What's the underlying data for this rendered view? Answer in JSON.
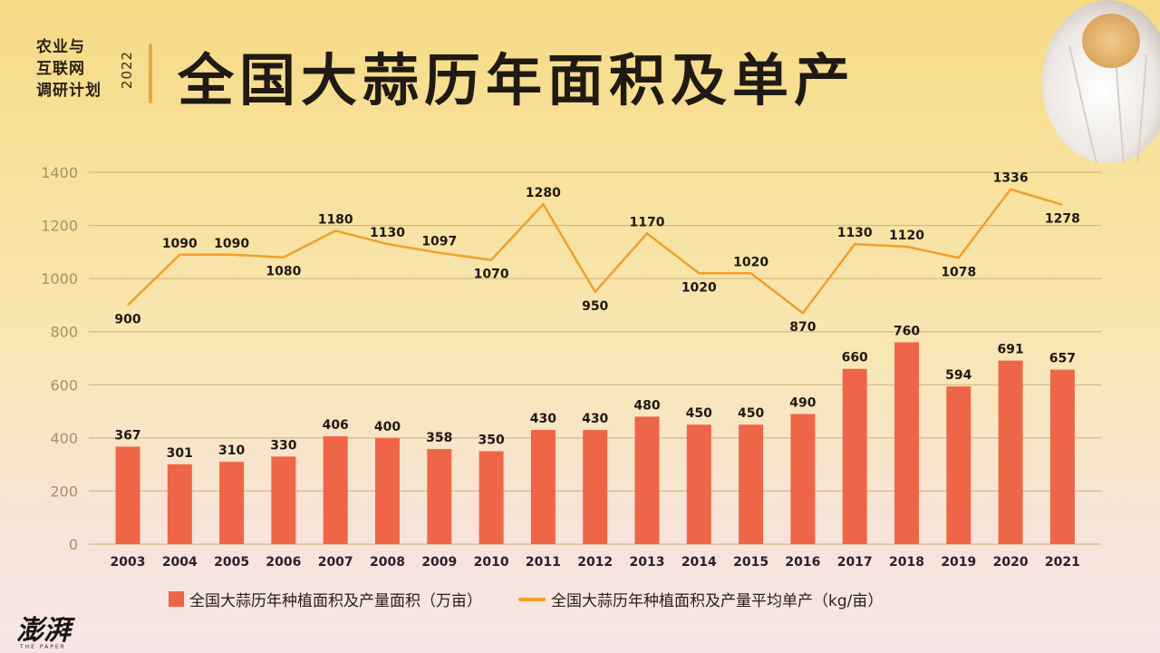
{
  "brand": {
    "lines": [
      "农业与",
      "互联网",
      "调研计划"
    ],
    "year": "2022"
  },
  "title": "全国大蒜历年面积及单产",
  "logo": {
    "text": "澎湃",
    "sub": "THE PAPER"
  },
  "legend": {
    "bar_label": "全国大蒜历年种植面积及产量面积（万亩）",
    "line_label": "全国大蒜历年种植面积及产量平均单产（kg/亩）"
  },
  "colors": {
    "bar": "#ee6647",
    "line": "#f0a028",
    "grid": "#c9b27a",
    "axis_text": "#a8916a",
    "label": "#1f1a14"
  },
  "chart_data": {
    "type": "bar+line",
    "title": "全国大蒜历年面积及单产",
    "xlabel": "",
    "ylabel": "",
    "ylim": [
      0,
      1400
    ],
    "yticks": [
      0,
      200,
      400,
      600,
      800,
      1000,
      1200,
      1400
    ],
    "grid": true,
    "legend_position": "bottom",
    "categories": [
      "2003",
      "2004",
      "2005",
      "2006",
      "2007",
      "2008",
      "2009",
      "2010",
      "2011",
      "2012",
      "2013",
      "2014",
      "2015",
      "2016",
      "2017",
      "2018",
      "2019",
      "2020",
      "2021"
    ],
    "series": [
      {
        "name": "全国大蒜历年种植面积及产量面积（万亩）",
        "type": "bar",
        "values": [
          367,
          301,
          310,
          330,
          406,
          400,
          358,
          350,
          430,
          430,
          480,
          450,
          450,
          490,
          660,
          760,
          594,
          691,
          657
        ]
      },
      {
        "name": "全国大蒜历年种植面积及产量平均单产（kg/亩）",
        "type": "line",
        "values": [
          900,
          1090,
          1090,
          1080,
          1180,
          1130,
          1097,
          1070,
          1280,
          950,
          1170,
          1020,
          1020,
          870,
          1130,
          1120,
          1078,
          1336,
          1278
        ]
      }
    ]
  }
}
